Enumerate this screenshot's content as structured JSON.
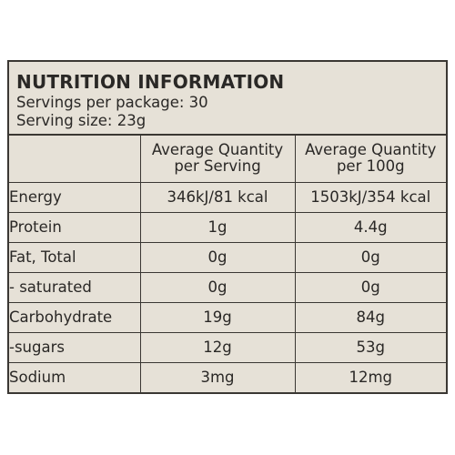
{
  "label": {
    "title": "NUTRITION INFORMATION",
    "servings_per_package": "Servings per package: 30",
    "serving_size": "Serving size: 23g"
  },
  "table": {
    "columns": [
      {
        "line1": "Average Quantity",
        "line2": "per Serving"
      },
      {
        "line1": "Average Quantity",
        "line2": "per 100g"
      }
    ],
    "rows": [
      {
        "name": "Energy",
        "per_serving": "346kJ/81 kcal",
        "per_100g": "1503kJ/354 kcal"
      },
      {
        "name": "Protein",
        "per_serving": "1g",
        "per_100g": "4.4g"
      },
      {
        "name": "Fat, Total",
        "per_serving": "0g",
        "per_100g": "0g"
      },
      {
        "name": "- saturated",
        "per_serving": "0g",
        "per_100g": "0g"
      },
      {
        "name": "Carbohydrate",
        "per_serving": "19g",
        "per_100g": "84g"
      },
      {
        "name": "-sugars",
        "per_serving": "12g",
        "per_100g": "53g"
      },
      {
        "name": "Sodium",
        "per_serving": "3mg",
        "per_100g": "12mg"
      }
    ]
  }
}
